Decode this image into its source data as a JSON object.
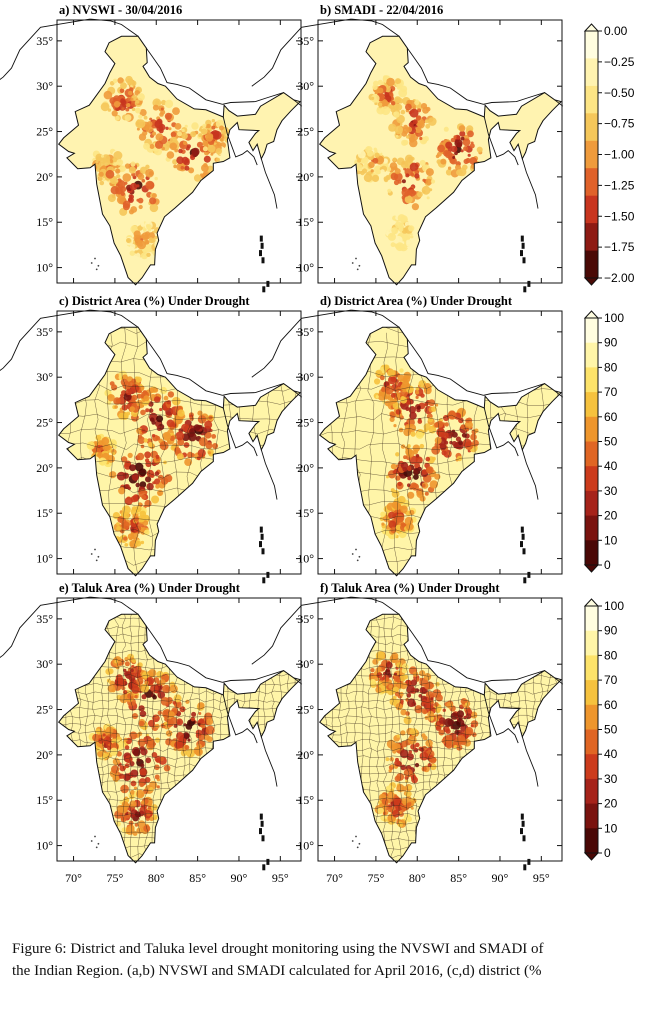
{
  "chart_data": [
    {
      "type": "heatmap",
      "panel": "a",
      "title": "a) NVSWI - 30/04/2016",
      "x_ticks": [
        "70°",
        "75°",
        "80°",
        "85°",
        "90°",
        "95°"
      ],
      "y_ticks": [
        "35°",
        "30°",
        "25°",
        "20°",
        "15°",
        "10°"
      ],
      "xlim": [
        68,
        97.5
      ],
      "ylim": [
        8.3,
        37.3
      ],
      "colorbar": {
        "labels": [
          "0.00",
          "−0.25",
          "−0.50",
          "−0.75",
          "−1.00",
          "−1.25",
          "−1.50",
          "−1.75",
          "−2.00"
        ],
        "colors": [
          "#fffde0",
          "#fff3b0",
          "#fde585",
          "#f5c75a",
          "#ef9b3c",
          "#e0622a",
          "#c8351f",
          "#8e1b14",
          "#4a0a06"
        ]
      },
      "hotspots": [
        {
          "lon": 77.5,
          "lat": 18.5,
          "level": 0.9,
          "radius": 3.0
        },
        {
          "lon": 84.5,
          "lat": 22.5,
          "level": 0.85,
          "radius": 3.2
        },
        {
          "lon": 80.5,
          "lat": 25.5,
          "level": 0.8,
          "radius": 2.8
        },
        {
          "lon": 76.0,
          "lat": 28.5,
          "level": 0.75,
          "radius": 2.4
        },
        {
          "lon": 74.0,
          "lat": 21.0,
          "level": 0.6,
          "radius": 2.0
        },
        {
          "lon": 78.5,
          "lat": 13.0,
          "level": 0.55,
          "radius": 2.0
        },
        {
          "lon": 87.0,
          "lat": 24.5,
          "level": 0.7,
          "radius": 1.8
        }
      ]
    },
    {
      "type": "heatmap",
      "panel": "b",
      "title": "b) SMADI - 22/04/2016",
      "x_ticks": [
        "70°",
        "75°",
        "80°",
        "85°",
        "90°",
        "95°"
      ],
      "y_ticks": [
        "35°",
        "30°",
        "25°",
        "20°",
        "15°",
        "10°"
      ],
      "xlim": [
        68,
        97.5
      ],
      "ylim": [
        8.3,
        37.3
      ],
      "colorbar": {
        "labels": [
          "0.00",
          "−0.25",
          "−0.50",
          "−0.75",
          "−1.00",
          "−1.25",
          "−1.50",
          "−1.75",
          "−2.00"
        ],
        "colors": [
          "#fffde0",
          "#fff3b0",
          "#fde585",
          "#f5c75a",
          "#ef9b3c",
          "#e0622a",
          "#c8351f",
          "#8e1b14",
          "#4a0a06"
        ]
      },
      "hotspots": [
        {
          "lon": 79.0,
          "lat": 19.5,
          "level": 0.8,
          "radius": 3.0
        },
        {
          "lon": 85.0,
          "lat": 23.0,
          "level": 0.9,
          "radius": 2.8
        },
        {
          "lon": 79.5,
          "lat": 26.0,
          "level": 0.75,
          "radius": 2.6
        },
        {
          "lon": 76.5,
          "lat": 29.0,
          "level": 0.65,
          "radius": 2.0
        },
        {
          "lon": 74.5,
          "lat": 21.5,
          "level": 0.55,
          "radius": 1.8
        },
        {
          "lon": 78.0,
          "lat": 14.0,
          "level": 0.4,
          "radius": 1.8
        }
      ]
    },
    {
      "type": "heatmap",
      "panel": "c",
      "title": "c) District Area (%) Under Drought",
      "x_ticks": [
        "70°",
        "75°",
        "80°",
        "85°",
        "90°",
        "95°"
      ],
      "y_ticks": [
        "35°",
        "30°",
        "25°",
        "20°",
        "15°",
        "10°"
      ],
      "xlim": [
        68,
        97.5
      ],
      "ylim": [
        8.3,
        37.3
      ],
      "colorbar": {
        "labels": [
          "100",
          "90",
          "80",
          "70",
          "60",
          "50",
          "40",
          "30",
          "20",
          "10",
          "0"
        ],
        "colors": [
          "#fffde0",
          "#fff5a8",
          "#fde36a",
          "#f6c23e",
          "#ee962d",
          "#e06624",
          "#cc3b1c",
          "#a6231a",
          "#7a130f",
          "#4a0806"
        ]
      },
      "hotspots": [
        {
          "lon": 78.0,
          "lat": 19.0,
          "level": 0.95,
          "radius": 3.5
        },
        {
          "lon": 84.5,
          "lat": 23.5,
          "level": 0.95,
          "radius": 3.0
        },
        {
          "lon": 80.0,
          "lat": 25.5,
          "level": 0.9,
          "radius": 3.2
        },
        {
          "lon": 76.5,
          "lat": 28.0,
          "level": 0.8,
          "radius": 2.4
        },
        {
          "lon": 77.0,
          "lat": 13.5,
          "level": 0.7,
          "radius": 2.2
        },
        {
          "lon": 73.5,
          "lat": 22.0,
          "level": 0.6,
          "radius": 1.6
        }
      ]
    },
    {
      "type": "heatmap",
      "panel": "d",
      "title": "d) District Area (%) Under Drought",
      "x_ticks": [
        "70°",
        "75°",
        "80°",
        "85°",
        "90°",
        "95°"
      ],
      "y_ticks": [
        "35°",
        "30°",
        "25°",
        "20°",
        "15°",
        "10°"
      ],
      "xlim": [
        68,
        97.5
      ],
      "ylim": [
        8.3,
        37.3
      ],
      "colorbar": {
        "labels": [
          "100",
          "90",
          "80",
          "70",
          "60",
          "50",
          "40",
          "30",
          "20",
          "10",
          "0"
        ],
        "colors": [
          "#fffde0",
          "#fff5a8",
          "#fde36a",
          "#f6c23e",
          "#ee962d",
          "#e06624",
          "#cc3b1c",
          "#a6231a",
          "#7a130f",
          "#4a0806"
        ]
      },
      "hotspots": [
        {
          "lon": 79.5,
          "lat": 19.5,
          "level": 0.9,
          "radius": 3.2
        },
        {
          "lon": 84.5,
          "lat": 23.5,
          "level": 0.95,
          "radius": 2.8
        },
        {
          "lon": 79.5,
          "lat": 26.5,
          "level": 0.85,
          "radius": 3.0
        },
        {
          "lon": 77.0,
          "lat": 29.0,
          "level": 0.75,
          "radius": 2.2
        },
        {
          "lon": 77.5,
          "lat": 14.5,
          "level": 0.65,
          "radius": 2.2
        }
      ]
    },
    {
      "type": "heatmap",
      "panel": "e",
      "title": "e) Taluk Area (%) Under Drought",
      "x_ticks": [
        "70°",
        "75°",
        "80°",
        "85°",
        "90°",
        "95°"
      ],
      "y_ticks": [
        "35°",
        "30°",
        "25°",
        "20°",
        "15°",
        "10°"
      ],
      "xlim": [
        68,
        97.5
      ],
      "ylim": [
        8.3,
        37.3
      ],
      "colorbar": {
        "labels": [
          "100",
          "90",
          "80",
          "70",
          "60",
          "50",
          "40",
          "30",
          "20",
          "10",
          "0"
        ],
        "colors": [
          "#fffde0",
          "#fff5a8",
          "#fde36a",
          "#f6c23e",
          "#ee962d",
          "#e06624",
          "#cc3b1c",
          "#a6231a",
          "#7a130f",
          "#4a0806"
        ]
      },
      "hotspots": [
        {
          "lon": 78.0,
          "lat": 19.0,
          "level": 0.95,
          "radius": 3.4
        },
        {
          "lon": 84.0,
          "lat": 23.0,
          "level": 0.95,
          "radius": 3.0
        },
        {
          "lon": 79.5,
          "lat": 26.0,
          "level": 0.95,
          "radius": 3.2
        },
        {
          "lon": 76.5,
          "lat": 28.5,
          "level": 0.85,
          "radius": 2.4
        },
        {
          "lon": 77.5,
          "lat": 13.5,
          "level": 0.8,
          "radius": 2.4
        },
        {
          "lon": 74.0,
          "lat": 21.5,
          "level": 0.7,
          "radius": 1.8
        }
      ]
    },
    {
      "type": "heatmap",
      "panel": "f",
      "title": "f) Taluk Area (%) Under Drought",
      "x_ticks": [
        "70°",
        "75°",
        "80°",
        "85°",
        "90°",
        "95°"
      ],
      "y_ticks": [
        "35°",
        "30°",
        "25°",
        "20°",
        "15°",
        "10°"
      ],
      "xlim": [
        68,
        97.5
      ],
      "ylim": [
        8.3,
        37.3
      ],
      "colorbar": {
        "labels": [
          "100",
          "90",
          "80",
          "70",
          "60",
          "50",
          "40",
          "30",
          "20",
          "10",
          "0"
        ],
        "colors": [
          "#fffde0",
          "#fff5a8",
          "#fde36a",
          "#f6c23e",
          "#ee962d",
          "#e06624",
          "#cc3b1c",
          "#a6231a",
          "#7a130f",
          "#4a0806"
        ]
      },
      "hotspots": [
        {
          "lon": 79.5,
          "lat": 19.5,
          "level": 0.9,
          "radius": 3.2
        },
        {
          "lon": 84.5,
          "lat": 23.5,
          "level": 0.95,
          "radius": 2.8
        },
        {
          "lon": 80.0,
          "lat": 26.5,
          "level": 0.9,
          "radius": 3.0
        },
        {
          "lon": 76.5,
          "lat": 29.0,
          "level": 0.8,
          "radius": 2.2
        },
        {
          "lon": 77.5,
          "lat": 14.5,
          "level": 0.75,
          "radius": 2.2
        }
      ]
    }
  ],
  "caption": {
    "line1": "Figure 6: District and Taluka level drought monitoring using the NVSWI and SMADI of",
    "line2": "the Indian Region. (a,b) NVSWI and SMADI calculated for April 2016, (c,d) district (%"
  }
}
